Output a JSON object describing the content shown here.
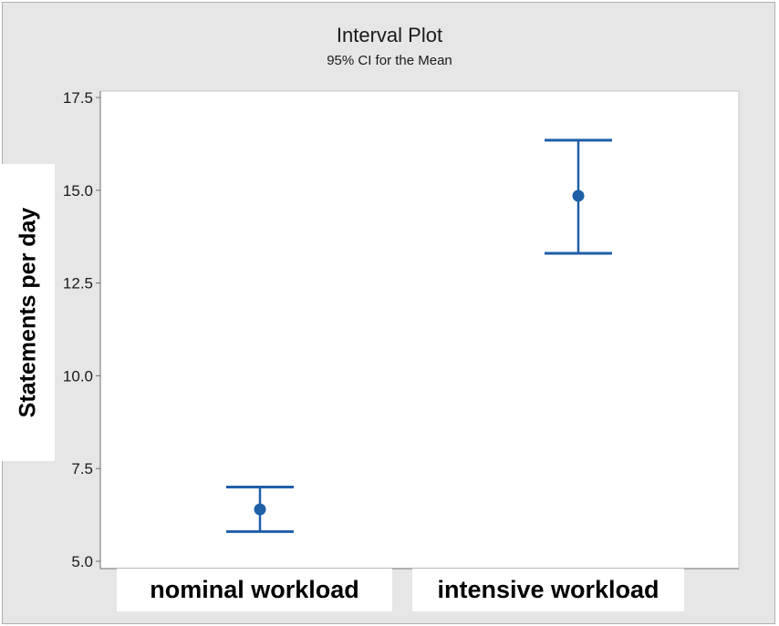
{
  "chart_data": {
    "type": "scatter",
    "title": "Interval Plot",
    "subtitle": "95% CI for the Mean",
    "ylabel": "Statements per day",
    "categories": [
      "nominal workload",
      "intensive workload"
    ],
    "series": [
      {
        "means": [
          6.4,
          14.85
        ],
        "ci_lower": [
          5.8,
          13.3
        ],
        "ci_upper": [
          7.0,
          16.35
        ]
      }
    ],
    "ylim": [
      5.0,
      17.5
    ],
    "yticks": [
      "5.0",
      "7.5",
      "10.0",
      "12.5",
      "15.0",
      "17.5"
    ],
    "grid": false,
    "colors": {
      "marker": "#1f5fa8",
      "plot_bg": "#ffffff",
      "frame_bg": "#e6e6e6"
    }
  }
}
